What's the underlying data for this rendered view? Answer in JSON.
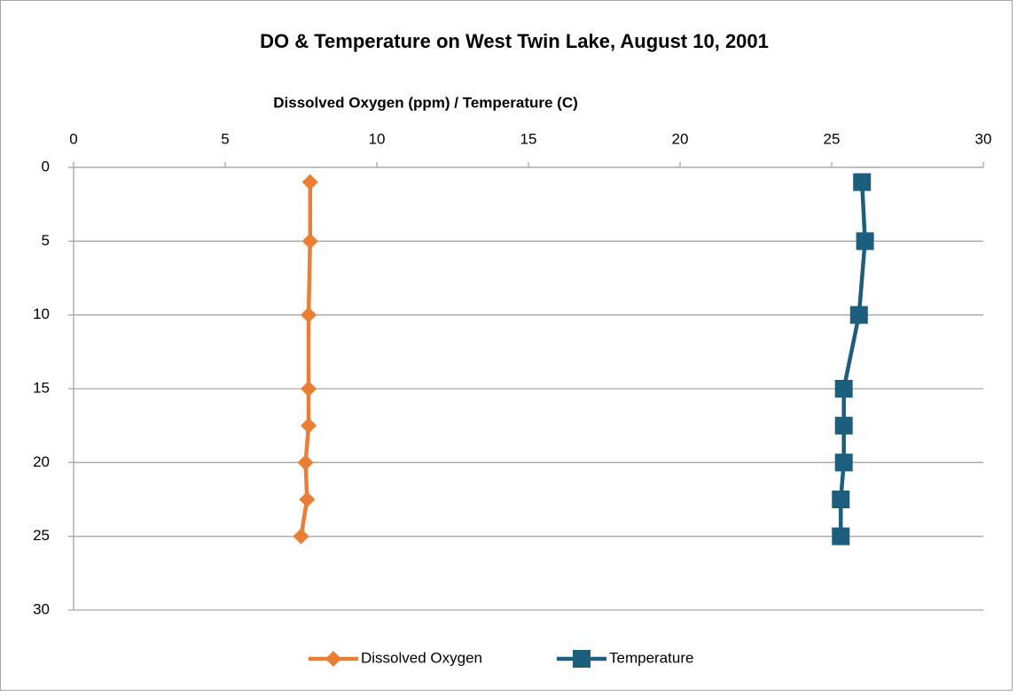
{
  "chart_data": {
    "type": "line",
    "title": "DO & Temperature on West Twin Lake, August 10, 2001",
    "x_label": "Dissolved Oxygen (ppm) / Temperature (C)",
    "y": [
      1,
      5,
      10,
      15,
      17.5,
      20,
      22.5,
      25
    ],
    "series": [
      {
        "name": "Dissolved Oxygen",
        "color": "#ed7d31",
        "marker": "diamond",
        "values": [
          7.8,
          7.8,
          7.75,
          7.75,
          7.75,
          7.65,
          7.7,
          7.5
        ]
      },
      {
        "name": "Temperature",
        "color": "#1b5e7e",
        "marker": "square",
        "values": [
          26.0,
          26.1,
          25.9,
          25.4,
          25.4,
          25.4,
          25.3,
          25.3
        ]
      }
    ],
    "xlim": [
      0,
      30
    ],
    "xticks": [
      0,
      5,
      10,
      15,
      20,
      25,
      30
    ],
    "ylim": [
      0,
      30
    ],
    "yticks": [
      0,
      5,
      10,
      15,
      20,
      25,
      30
    ],
    "y_reversed": true,
    "grid": true,
    "legend": "bottom"
  }
}
